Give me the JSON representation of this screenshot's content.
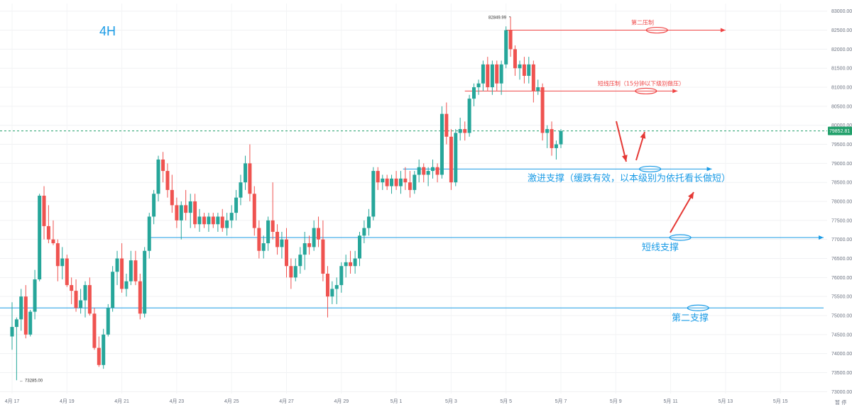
{
  "chart_data": {
    "type": "candlestick",
    "timeframe": "4H",
    "x_tick_labels": [
      "4月 17",
      "4月 19",
      "4月 21",
      "4月 23",
      "4月 25",
      "4月 27",
      "4月 29",
      "5月 1",
      "5月 3",
      "5月 5",
      "5月 7",
      "5月 9",
      "5月 11",
      "5月 13",
      "5月 15"
    ],
    "y_tick_labels": [
      "73000.00",
      "73500.00",
      "74000.00",
      "74500.00",
      "75000.00",
      "75500.00",
      "76000.00",
      "76500.00",
      "77000.00",
      "77500.00",
      "78000.00",
      "78500.00",
      "79000.00",
      "79500.00",
      "80000.00",
      "80500.00",
      "81000.00",
      "81500.00",
      "82000.00",
      "82500.00",
      "83000.00"
    ],
    "y_range": [
      72950,
      83200
    ],
    "high_marker": "82849.99",
    "low_marker": "73285.00",
    "current_price": "79852.81",
    "current_price_value": 79852.81,
    "bottom_right_labels": "暂 停",
    "candles": [
      {
        "o": 74450,
        "h": 75350,
        "l": 74100,
        "c": 74700,
        "t": 0
      },
      {
        "o": 74700,
        "h": 74950,
        "l": 73300,
        "c": 74900,
        "t": 0.33
      },
      {
        "o": 74900,
        "h": 75700,
        "l": 74600,
        "c": 75500,
        "t": 0.66
      },
      {
        "o": 75500,
        "h": 75800,
        "l": 74400,
        "c": 74500,
        "t": 1.0
      },
      {
        "o": 74500,
        "h": 75150,
        "l": 74450,
        "c": 75100,
        "t": 1.33
      },
      {
        "o": 75100,
        "h": 76200,
        "l": 74900,
        "c": 75950,
        "t": 1.66
      },
      {
        "o": 75950,
        "h": 78200,
        "l": 75900,
        "c": 78150,
        "t": 2.0
      },
      {
        "o": 78150,
        "h": 78400,
        "l": 77000,
        "c": 77350,
        "t": 2.33
      },
      {
        "o": 77350,
        "h": 77900,
        "l": 76900,
        "c": 77000,
        "t": 2.66
      },
      {
        "o": 77000,
        "h": 77500,
        "l": 76850,
        "c": 76900,
        "t": 3.0
      },
      {
        "o": 76900,
        "h": 77000,
        "l": 75900,
        "c": 76300,
        "t": 3.33
      },
      {
        "o": 76300,
        "h": 76800,
        "l": 75950,
        "c": 76500,
        "t": 3.66
      },
      {
        "o": 76500,
        "h": 76600,
        "l": 75750,
        "c": 75800,
        "t": 4.0
      },
      {
        "o": 75800,
        "h": 76000,
        "l": 75300,
        "c": 75650,
        "t": 4.33
      },
      {
        "o": 75650,
        "h": 75950,
        "l": 75100,
        "c": 75200,
        "t": 4.66
      },
      {
        "o": 75200,
        "h": 75700,
        "l": 75050,
        "c": 75400,
        "t": 5.0
      },
      {
        "o": 75400,
        "h": 75900,
        "l": 74950,
        "c": 75800,
        "t": 5.33
      },
      {
        "o": 75800,
        "h": 76000,
        "l": 75000,
        "c": 75050,
        "t": 5.66
      },
      {
        "o": 75050,
        "h": 75200,
        "l": 74100,
        "c": 74150,
        "t": 6.0
      },
      {
        "o": 74150,
        "h": 74450,
        "l": 73650,
        "c": 73700,
        "t": 6.33
      },
      {
        "o": 73700,
        "h": 74650,
        "l": 73600,
        "c": 74500,
        "t": 6.66
      },
      {
        "o": 74500,
        "h": 75300,
        "l": 74450,
        "c": 75200,
        "t": 7.0
      },
      {
        "o": 75200,
        "h": 76300,
        "l": 75100,
        "c": 76150,
        "t": 7.33
      },
      {
        "o": 76150,
        "h": 76700,
        "l": 75800,
        "c": 76500,
        "t": 7.66
      },
      {
        "o": 76500,
        "h": 76900,
        "l": 75600,
        "c": 75700,
        "t": 8.0
      },
      {
        "o": 75700,
        "h": 76100,
        "l": 75500,
        "c": 75900,
        "t": 8.33
      },
      {
        "o": 75900,
        "h": 76700,
        "l": 75800,
        "c": 76450,
        "t": 8.66
      },
      {
        "o": 76450,
        "h": 76700,
        "l": 75800,
        "c": 75900,
        "t": 9.0
      },
      {
        "o": 75900,
        "h": 76100,
        "l": 74900,
        "c": 75050,
        "t": 9.33
      },
      {
        "o": 75050,
        "h": 76800,
        "l": 74950,
        "c": 76700,
        "t": 9.66
      },
      {
        "o": 76700,
        "h": 77700,
        "l": 76500,
        "c": 77600,
        "t": 10.0
      },
      {
        "o": 77600,
        "h": 78300,
        "l": 77400,
        "c": 78200,
        "t": 10.33
      },
      {
        "o": 78200,
        "h": 79200,
        "l": 78000,
        "c": 79100,
        "t": 10.66
      },
      {
        "o": 79100,
        "h": 79300,
        "l": 78500,
        "c": 78800,
        "t": 11.0
      },
      {
        "o": 78800,
        "h": 79000,
        "l": 78100,
        "c": 78300,
        "t": 11.33
      },
      {
        "o": 78300,
        "h": 78700,
        "l": 77700,
        "c": 77900,
        "t": 11.66
      },
      {
        "o": 77900,
        "h": 78100,
        "l": 77300,
        "c": 77500,
        "t": 12.0
      },
      {
        "o": 77500,
        "h": 78000,
        "l": 77000,
        "c": 77900,
        "t": 12.33
      },
      {
        "o": 77900,
        "h": 78300,
        "l": 77500,
        "c": 77700,
        "t": 12.66
      },
      {
        "o": 77700,
        "h": 78200,
        "l": 77300,
        "c": 78000,
        "t": 13.0
      },
      {
        "o": 78000,
        "h": 78200,
        "l": 77300,
        "c": 77400,
        "t": 13.33
      },
      {
        "o": 77400,
        "h": 77800,
        "l": 77200,
        "c": 77600,
        "t": 13.66
      },
      {
        "o": 77600,
        "h": 77700,
        "l": 77300,
        "c": 77400,
        "t": 14.0
      },
      {
        "o": 77400,
        "h": 77700,
        "l": 77200,
        "c": 77600,
        "t": 14.33
      },
      {
        "o": 77600,
        "h": 77700,
        "l": 77300,
        "c": 77400,
        "t": 14.66
      },
      {
        "o": 77400,
        "h": 77700,
        "l": 77200,
        "c": 77600,
        "t": 15.0
      },
      {
        "o": 77600,
        "h": 77800,
        "l": 77200,
        "c": 77300,
        "t": 15.33
      },
      {
        "o": 77300,
        "h": 77700,
        "l": 77100,
        "c": 77500,
        "t": 15.66
      },
      {
        "o": 77500,
        "h": 77900,
        "l": 77300,
        "c": 77700,
        "t": 16.0
      },
      {
        "o": 77700,
        "h": 78300,
        "l": 77500,
        "c": 78100,
        "t": 16.33
      },
      {
        "o": 78100,
        "h": 78700,
        "l": 77900,
        "c": 78500,
        "t": 16.66
      },
      {
        "o": 78500,
        "h": 79200,
        "l": 78300,
        "c": 79000,
        "t": 17.0
      },
      {
        "o": 79000,
        "h": 79500,
        "l": 78000,
        "c": 78200,
        "t": 17.33
      },
      {
        "o": 78200,
        "h": 78400,
        "l": 77100,
        "c": 77300,
        "t": 17.66
      },
      {
        "o": 77300,
        "h": 77500,
        "l": 76500,
        "c": 76700,
        "t": 18.0
      },
      {
        "o": 76700,
        "h": 77100,
        "l": 76500,
        "c": 76900,
        "t": 18.33
      },
      {
        "o": 76900,
        "h": 77600,
        "l": 76700,
        "c": 77500,
        "t": 18.66
      },
      {
        "o": 77500,
        "h": 78500,
        "l": 77000,
        "c": 77200,
        "t": 19.0
      },
      {
        "o": 77200,
        "h": 77400,
        "l": 76600,
        "c": 76800,
        "t": 19.33
      },
      {
        "o": 76800,
        "h": 77200,
        "l": 76500,
        "c": 77000,
        "t": 19.66
      },
      {
        "o": 77000,
        "h": 77300,
        "l": 76000,
        "c": 76300,
        "t": 20.0
      },
      {
        "o": 76300,
        "h": 76500,
        "l": 75700,
        "c": 76000,
        "t": 20.33
      },
      {
        "o": 76000,
        "h": 76500,
        "l": 75900,
        "c": 76300,
        "t": 20.66
      },
      {
        "o": 76300,
        "h": 76800,
        "l": 76100,
        "c": 76600,
        "t": 21.0
      },
      {
        "o": 76600,
        "h": 77200,
        "l": 76200,
        "c": 76900,
        "t": 21.33
      },
      {
        "o": 76900,
        "h": 77100,
        "l": 76600,
        "c": 76800,
        "t": 21.66
      },
      {
        "o": 76800,
        "h": 77500,
        "l": 76700,
        "c": 77300,
        "t": 22.0
      },
      {
        "o": 77300,
        "h": 77600,
        "l": 76800,
        "c": 77000,
        "t": 22.33
      },
      {
        "o": 77000,
        "h": 77500,
        "l": 75900,
        "c": 76100,
        "t": 22.66
      },
      {
        "o": 76100,
        "h": 76300,
        "l": 74950,
        "c": 75500,
        "t": 23.0
      },
      {
        "o": 75500,
        "h": 75900,
        "l": 75300,
        "c": 75700,
        "t": 23.33
      },
      {
        "o": 75700,
        "h": 76000,
        "l": 75300,
        "c": 75800,
        "t": 23.66
      },
      {
        "o": 75800,
        "h": 76400,
        "l": 75600,
        "c": 76300,
        "t": 24.0
      },
      {
        "o": 76300,
        "h": 76600,
        "l": 76000,
        "c": 76400,
        "t": 24.33
      },
      {
        "o": 76400,
        "h": 76700,
        "l": 76100,
        "c": 76300,
        "t": 24.66
      },
      {
        "o": 76300,
        "h": 76700,
        "l": 76100,
        "c": 76500,
        "t": 25.0
      },
      {
        "o": 76500,
        "h": 77200,
        "l": 76300,
        "c": 77100,
        "t": 25.33
      },
      {
        "o": 77100,
        "h": 77500,
        "l": 76900,
        "c": 77300,
        "t": 25.66
      },
      {
        "o": 77300,
        "h": 77800,
        "l": 77100,
        "c": 77600,
        "t": 26.0
      },
      {
        "o": 77600,
        "h": 78900,
        "l": 77500,
        "c": 78800,
        "t": 26.33
      },
      {
        "o": 78800,
        "h": 78900,
        "l": 78300,
        "c": 78500,
        "t": 26.66
      },
      {
        "o": 78500,
        "h": 78700,
        "l": 78300,
        "c": 78600,
        "t": 27.0
      },
      {
        "o": 78600,
        "h": 78700,
        "l": 78300,
        "c": 78400,
        "t": 27.33
      },
      {
        "o": 78400,
        "h": 78700,
        "l": 78200,
        "c": 78600,
        "t": 27.66
      },
      {
        "o": 78600,
        "h": 78800,
        "l": 78300,
        "c": 78400,
        "t": 28.0
      },
      {
        "o": 78400,
        "h": 78800,
        "l": 78200,
        "c": 78600,
        "t": 28.33
      },
      {
        "o": 78600,
        "h": 78900,
        "l": 78300,
        "c": 78500,
        "t": 28.66
      },
      {
        "o": 78500,
        "h": 78800,
        "l": 78100,
        "c": 78300,
        "t": 29.0
      },
      {
        "o": 78300,
        "h": 78800,
        "l": 78200,
        "c": 78700,
        "t": 29.33
      },
      {
        "o": 78700,
        "h": 79100,
        "l": 78500,
        "c": 78900,
        "t": 29.66
      },
      {
        "o": 78900,
        "h": 79000,
        "l": 78500,
        "c": 78700,
        "t": 30.0
      },
      {
        "o": 78700,
        "h": 78900,
        "l": 78400,
        "c": 78800,
        "t": 30.33
      },
      {
        "o": 78800,
        "h": 79100,
        "l": 78600,
        "c": 78900,
        "t": 30.66
      },
      {
        "o": 78900,
        "h": 79000,
        "l": 78500,
        "c": 78700,
        "t": 31.0
      },
      {
        "o": 78700,
        "h": 80500,
        "l": 78600,
        "c": 80300,
        "t": 31.33
      },
      {
        "o": 80300,
        "h": 80600,
        "l": 79500,
        "c": 79700,
        "t": 31.66
      },
      {
        "o": 79700,
        "h": 79900,
        "l": 78300,
        "c": 78500,
        "t": 32.0
      },
      {
        "o": 78500,
        "h": 79900,
        "l": 78400,
        "c": 79800,
        "t": 32.33
      },
      {
        "o": 79800,
        "h": 80200,
        "l": 79600,
        "c": 79900,
        "t": 32.66
      },
      {
        "o": 79900,
        "h": 80100,
        "l": 79600,
        "c": 79800,
        "t": 33.0
      },
      {
        "o": 79800,
        "h": 80800,
        "l": 79700,
        "c": 80700,
        "t": 33.33
      },
      {
        "o": 80700,
        "h": 81100,
        "l": 80500,
        "c": 81000,
        "t": 33.66
      },
      {
        "o": 81000,
        "h": 81200,
        "l": 80800,
        "c": 81100,
        "t": 34.0
      },
      {
        "o": 81100,
        "h": 81700,
        "l": 80900,
        "c": 81600,
        "t": 34.33
      },
      {
        "o": 81600,
        "h": 81800,
        "l": 80900,
        "c": 81000,
        "t": 34.66
      },
      {
        "o": 81000,
        "h": 81700,
        "l": 80800,
        "c": 81600,
        "t": 35.0
      },
      {
        "o": 81600,
        "h": 81700,
        "l": 80900,
        "c": 81100,
        "t": 35.33
      },
      {
        "o": 81100,
        "h": 81700,
        "l": 80800,
        "c": 81600,
        "t": 35.66
      },
      {
        "o": 81600,
        "h": 82600,
        "l": 81500,
        "c": 82500,
        "t": 36.0
      },
      {
        "o": 82500,
        "h": 82850,
        "l": 81800,
        "c": 82000,
        "t": 36.33
      },
      {
        "o": 82000,
        "h": 82100,
        "l": 81300,
        "c": 81500,
        "t": 36.66
      },
      {
        "o": 81500,
        "h": 81700,
        "l": 81200,
        "c": 81600,
        "t": 37.0
      },
      {
        "o": 81600,
        "h": 81800,
        "l": 81100,
        "c": 81300,
        "t": 37.33
      },
      {
        "o": 81300,
        "h": 81800,
        "l": 81100,
        "c": 81600,
        "t": 37.66
      },
      {
        "o": 81600,
        "h": 81700,
        "l": 80600,
        "c": 80900,
        "t": 38.0
      },
      {
        "o": 80900,
        "h": 81200,
        "l": 80800,
        "c": 81000,
        "t": 38.33
      },
      {
        "o": 81000,
        "h": 81100,
        "l": 79600,
        "c": 79800,
        "t": 38.66
      },
      {
        "o": 79800,
        "h": 80000,
        "l": 79400,
        "c": 79900,
        "t": 39.0
      },
      {
        "o": 79900,
        "h": 80100,
        "l": 79200,
        "c": 79400,
        "t": 39.33
      },
      {
        "o": 79400,
        "h": 79600,
        "l": 79100,
        "c": 79500,
        "t": 39.66
      },
      {
        "o": 79500,
        "h": 79900,
        "l": 79400,
        "c": 79850,
        "t": 40.0
      }
    ],
    "horizontal_lines": [
      {
        "value": 82500,
        "color": "#ef4444",
        "label": "第二压制",
        "from": 36.0,
        "to": 52.0,
        "arrow": true,
        "label_size": "small"
      },
      {
        "value": 80900,
        "color": "#ef4444",
        "label": "短线压制（15分钟以下级别做压）",
        "from": 33.0,
        "to": 48.5,
        "arrow": true,
        "label_size": "small"
      },
      {
        "value": 78850,
        "color": "#1a9be6",
        "label": "激进支撑（缓跌有效，以本级别为依托看长做短）",
        "from": 28.5,
        "to": 51.0,
        "arrow": true,
        "label_size": "large"
      },
      {
        "value": 77050,
        "color": "#1a9be6",
        "label": "短线支撑",
        "from": 10.0,
        "to": 60.0,
        "arrow": true,
        "label_size": "large"
      },
      {
        "value": 75200,
        "color": "#1a9be6",
        "label": "第二支撑",
        "from": -1.0,
        "to": 62.0,
        "arrow": false,
        "label_size": "large"
      }
    ],
    "ellipses": [
      {
        "value": 82500,
        "at": 47.0,
        "color": "#ef4444"
      },
      {
        "value": 80900,
        "at": 46.2,
        "color": "#ef4444"
      },
      {
        "value": 78850,
        "at": 46.5,
        "color": "#1a9be6"
      },
      {
        "value": 77050,
        "at": 48.7,
        "color": "#1a9be6"
      },
      {
        "value": 75200,
        "at": 50.0,
        "color": "#1a9be6"
      }
    ]
  }
}
